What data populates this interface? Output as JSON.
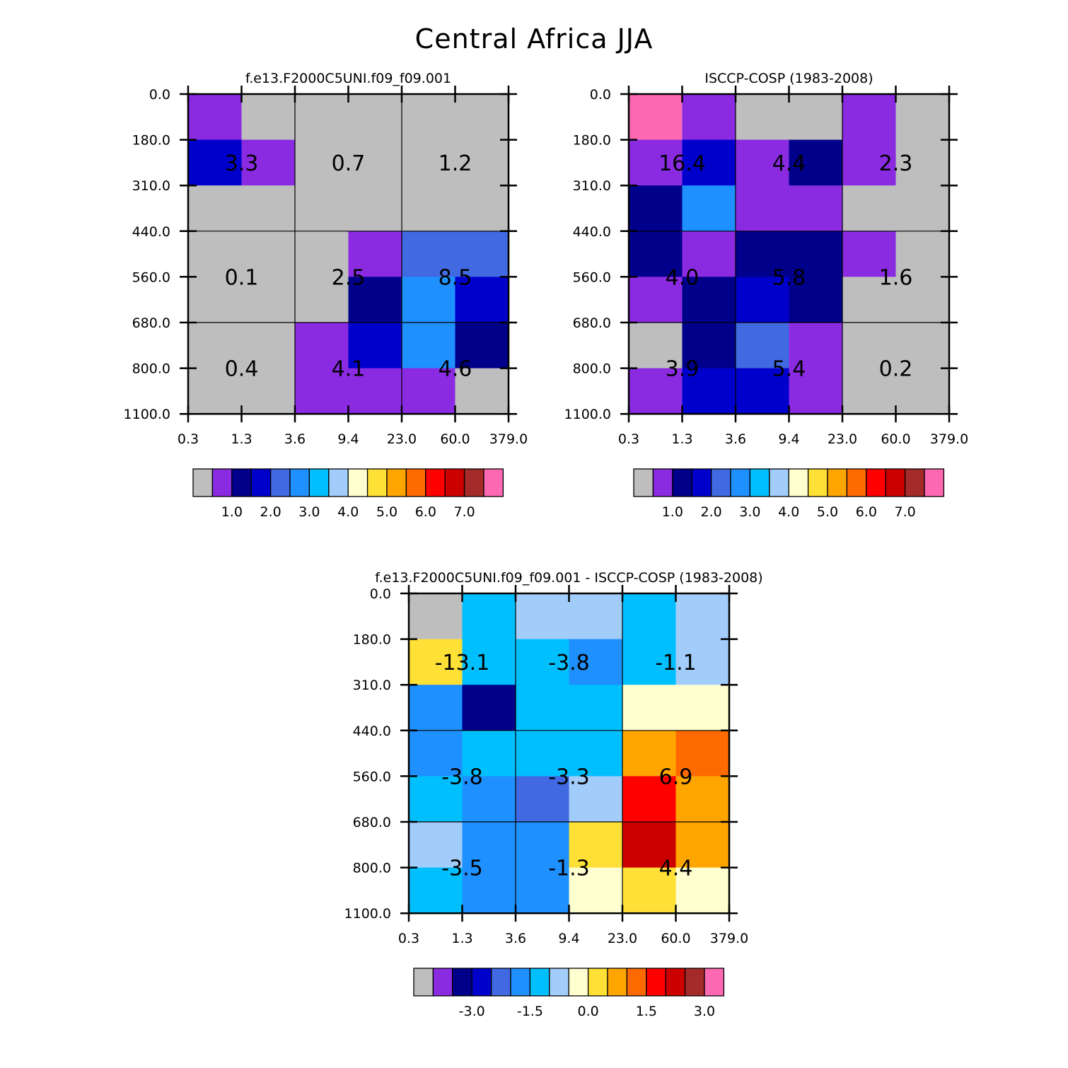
{
  "figure": {
    "title": "Central Africa JJA"
  },
  "colors": {
    "palette": [
      "#bebebe",
      "#8a2be2",
      "#00008b",
      "#0000cd",
      "#4169e1",
      "#1e90ff",
      "#00bfff",
      "#a2cdfa",
      "#ffffd0",
      "#ffe036",
      "#ffa500",
      "#ff6a00",
      "#ff0000",
      "#cd0000",
      "#a52a2a",
      "#ff69b4"
    ]
  },
  "chart_data": [
    {
      "type": "heatmap",
      "title": "f.e13.F2000C5UNI.f09_f09.001",
      "xlabel": "",
      "ylabel": "",
      "x_tick_labels": [
        "0.3",
        "1.3",
        "3.6",
        "9.4",
        "23.0",
        "60.0",
        "379.0"
      ],
      "y_tick_labels": [
        "0.0",
        "180.0",
        "310.0",
        "440.0",
        "560.0",
        "680.0",
        "800.0",
        "1100.0"
      ],
      "cell_color_index": [
        [
          1,
          0,
          0,
          0,
          0,
          0
        ],
        [
          3,
          1,
          0,
          0,
          0,
          0
        ],
        [
          0,
          0,
          0,
          0,
          0,
          0
        ],
        [
          0,
          0,
          0,
          1,
          4,
          4
        ],
        [
          0,
          0,
          0,
          2,
          5,
          3
        ],
        [
          0,
          0,
          1,
          3,
          5,
          2
        ],
        [
          0,
          0,
          1,
          1,
          1,
          0
        ]
      ],
      "group_values": [
        [
          "3.3",
          "0.7",
          "1.2"
        ],
        [
          "0.1",
          "2.5",
          "8.5"
        ],
        [
          "0.4",
          "4.1",
          "4.6"
        ]
      ],
      "colorbar_labels": [
        "1.0",
        "2.0",
        "3.0",
        "4.0",
        "5.0",
        "6.0",
        "7.0"
      ],
      "colorbar_levels": [
        1.0,
        2.0,
        3.0,
        4.0,
        5.0,
        6.0,
        7.0
      ]
    },
    {
      "type": "heatmap",
      "title": "ISCCP-COSP (1983-2008)",
      "xlabel": "",
      "ylabel": "",
      "x_tick_labels": [
        "0.3",
        "1.3",
        "3.6",
        "9.4",
        "23.0",
        "60.0",
        "379.0"
      ],
      "y_tick_labels": [
        "0.0",
        "180.0",
        "310.0",
        "440.0",
        "560.0",
        "680.0",
        "800.0",
        "1100.0"
      ],
      "cell_color_index": [
        [
          15,
          1,
          0,
          0,
          1,
          0
        ],
        [
          1,
          3,
          1,
          2,
          1,
          0
        ],
        [
          2,
          5,
          1,
          1,
          0,
          0
        ],
        [
          2,
          1,
          2,
          2,
          1,
          0
        ],
        [
          1,
          2,
          3,
          2,
          0,
          0
        ],
        [
          0,
          2,
          4,
          1,
          0,
          0
        ],
        [
          1,
          3,
          3,
          1,
          0,
          0
        ]
      ],
      "group_values": [
        [
          "16.4",
          "4.4",
          "2.3"
        ],
        [
          "4.0",
          "5.8",
          "1.6"
        ],
        [
          "3.9",
          "5.4",
          "0.2"
        ]
      ],
      "colorbar_labels": [
        "1.0",
        "2.0",
        "3.0",
        "4.0",
        "5.0",
        "6.0",
        "7.0"
      ],
      "colorbar_levels": [
        1.0,
        2.0,
        3.0,
        4.0,
        5.0,
        6.0,
        7.0
      ]
    },
    {
      "type": "heatmap",
      "title": "f.e13.F2000C5UNI.f09_f09.001 - ISCCP-COSP (1983-2008)",
      "xlabel": "",
      "ylabel": "",
      "x_tick_labels": [
        "0.3",
        "1.3",
        "3.6",
        "9.4",
        "23.0",
        "60.0",
        "379.0"
      ],
      "y_tick_labels": [
        "0.0",
        "180.0",
        "310.0",
        "440.0",
        "560.0",
        "680.0",
        "800.0",
        "1100.0"
      ],
      "cell_color_index": [
        [
          0,
          6,
          7,
          7,
          6,
          7
        ],
        [
          9,
          6,
          6,
          5,
          6,
          7
        ],
        [
          5,
          2,
          6,
          6,
          8,
          8
        ],
        [
          5,
          6,
          6,
          6,
          10,
          11
        ],
        [
          6,
          5,
          4,
          7,
          12,
          10
        ],
        [
          7,
          5,
          5,
          9,
          13,
          10
        ],
        [
          6,
          5,
          5,
          8,
          9,
          8
        ]
      ],
      "group_values": [
        [
          "-13.1",
          "-3.8",
          "-1.1"
        ],
        [
          "-3.8",
          "-3.3",
          "6.9"
        ],
        [
          "-3.5",
          "-1.3",
          "4.4"
        ]
      ],
      "colorbar_labels": [
        "-3.0",
        "-1.5",
        "0.0",
        "1.5",
        "3.0"
      ],
      "colorbar_levels": [
        -3.0,
        -1.5,
        0.0,
        1.5,
        3.0
      ]
    }
  ]
}
